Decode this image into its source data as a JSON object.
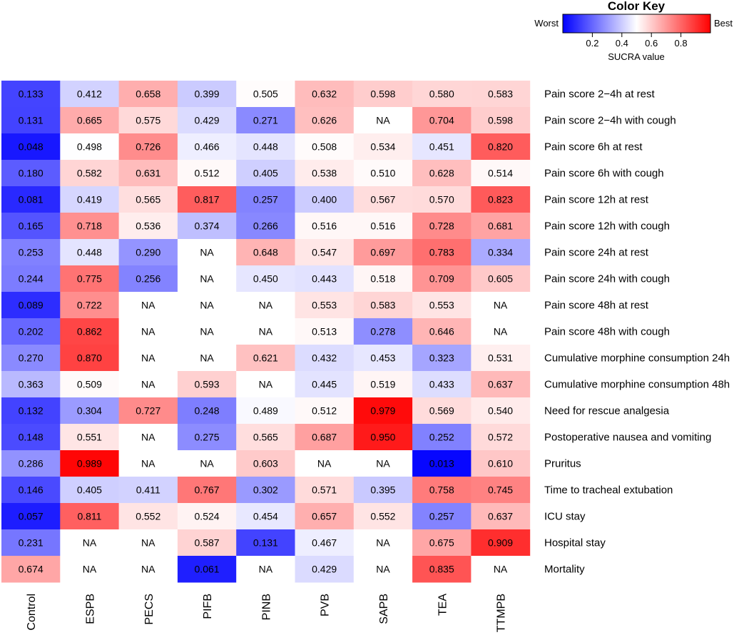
{
  "chart_data": {
    "type": "heatmap",
    "color_key": {
      "title": "Color Key",
      "low_label": "Worst",
      "high_label": "Best",
      "axis_label": "SUCRA value",
      "ticks": [
        "0.2",
        "0.4",
        "0.6",
        "0.8"
      ],
      "tick_values": [
        0.2,
        0.4,
        0.6,
        0.8
      ],
      "range": [
        0,
        1
      ],
      "low_color": "#0000ff",
      "mid_color": "#ffffff",
      "high_color": "#ff0000",
      "na_color": "#ffffff"
    },
    "columns": [
      "Control",
      "ESPB",
      "PECS",
      "PIFB",
      "PINB",
      "PVB",
      "SAPB",
      "TEA",
      "TTMPB"
    ],
    "rows": [
      {
        "label": "Pain score 2−4h at rest",
        "values": [
          "0.133",
          "0.412",
          "0.658",
          "0.399",
          "0.505",
          "0.632",
          "0.598",
          "0.580",
          "0.583"
        ]
      },
      {
        "label": "Pain score 2−4h with cough",
        "values": [
          "0.131",
          "0.665",
          "0.575",
          "0.429",
          "0.271",
          "0.626",
          "NA",
          "0.704",
          "0.598"
        ]
      },
      {
        "label": "Pain score 6h at rest",
        "values": [
          "0.048",
          "0.498",
          "0.726",
          "0.466",
          "0.448",
          "0.508",
          "0.534",
          "0.451",
          "0.820"
        ]
      },
      {
        "label": "Pain score 6h with cough",
        "values": [
          "0.180",
          "0.582",
          "0.631",
          "0.512",
          "0.405",
          "0.538",
          "0.510",
          "0.628",
          "0.514"
        ]
      },
      {
        "label": "Pain score 12h at rest",
        "values": [
          "0.081",
          "0.419",
          "0.565",
          "0.817",
          "0.257",
          "0.400",
          "0.567",
          "0.570",
          "0.823"
        ]
      },
      {
        "label": "Pain score 12h with cough",
        "values": [
          "0.165",
          "0.718",
          "0.536",
          "0.374",
          "0.266",
          "0.516",
          "0.516",
          "0.728",
          "0.681"
        ]
      },
      {
        "label": "Pain score 24h at rest",
        "values": [
          "0.253",
          "0.448",
          "0.290",
          "NA",
          "0.648",
          "0.547",
          "0.697",
          "0.783",
          "0.334"
        ]
      },
      {
        "label": "Pain score 24h with cough",
        "values": [
          "0.244",
          "0.775",
          "0.256",
          "NA",
          "0.450",
          "0.443",
          "0.518",
          "0.709",
          "0.605"
        ]
      },
      {
        "label": "Pain score 48h at rest",
        "values": [
          "0.089",
          "0.722",
          "NA",
          "NA",
          "NA",
          "0.553",
          "0.583",
          "0.553",
          "NA"
        ]
      },
      {
        "label": "Pain score 48h with cough",
        "values": [
          "0.202",
          "0.862",
          "NA",
          "NA",
          "NA",
          "0.513",
          "0.278",
          "0.646",
          "NA"
        ]
      },
      {
        "label": "Cumulative morphine consumption 24h",
        "values": [
          "0.270",
          "0.870",
          "NA",
          "NA",
          "0.621",
          "0.432",
          "0.453",
          "0.323",
          "0.531"
        ]
      },
      {
        "label": "Cumulative morphine consumption 48h",
        "values": [
          "0.363",
          "0.509",
          "NA",
          "0.593",
          "NA",
          "0.445",
          "0.519",
          "0.433",
          "0.637"
        ]
      },
      {
        "label": "Need for rescue analgesia",
        "values": [
          "0.132",
          "0.304",
          "0.727",
          "0.248",
          "0.489",
          "0.512",
          "0.979",
          "0.569",
          "0.540"
        ]
      },
      {
        "label": "Postoperative nausea and vomiting",
        "values": [
          "0.148",
          "0.551",
          "NA",
          "0.275",
          "0.565",
          "0.687",
          "0.950",
          "0.252",
          "0.572"
        ]
      },
      {
        "label": "Pruritus",
        "values": [
          "0.286",
          "0.989",
          "NA",
          "NA",
          "0.603",
          "NA",
          "NA",
          "0.013",
          "0.610"
        ]
      },
      {
        "label": "Time to tracheal extubation",
        "values": [
          "0.146",
          "0.405",
          "0.411",
          "0.767",
          "0.302",
          "0.571",
          "0.395",
          "0.758",
          "0.745"
        ]
      },
      {
        "label": "ICU stay",
        "values": [
          "0.057",
          "0.811",
          "0.552",
          "0.524",
          "0.454",
          "0.657",
          "0.552",
          "0.257",
          "0.637"
        ]
      },
      {
        "label": "Hospital stay",
        "values": [
          "0.231",
          "NA",
          "NA",
          "0.587",
          "0.131",
          "0.467",
          "NA",
          "0.675",
          "0.909"
        ]
      },
      {
        "label": "Mortality",
        "values": [
          "0.674",
          "NA",
          "NA",
          "0.061",
          "NA",
          "0.429",
          "NA",
          "0.835",
          "NA"
        ]
      }
    ]
  }
}
